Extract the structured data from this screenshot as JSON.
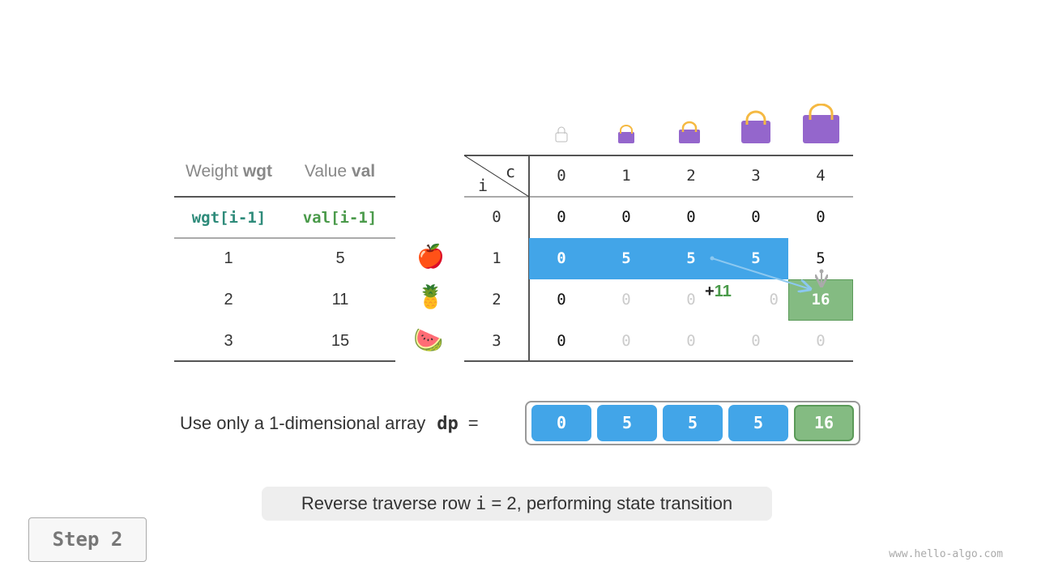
{
  "left_table": {
    "headers": [
      {
        "plain": "Weight ",
        "bold": "wgt"
      },
      {
        "plain": "Value ",
        "bold": "val"
      }
    ],
    "subheaders": [
      "wgt[i-1]",
      "val[i-1]"
    ],
    "rows": [
      [
        "1",
        "5"
      ],
      [
        "2",
        "11"
      ],
      [
        "3",
        "15"
      ]
    ],
    "items": [
      "apple-icon",
      "pineapple-icon",
      "watermelon-icon"
    ]
  },
  "dp_table": {
    "corner_c": "c",
    "corner_i": "i",
    "col_headers": [
      "0",
      "1",
      "2",
      "3",
      "4"
    ],
    "row_headers": [
      "0",
      "1",
      "2",
      "3"
    ],
    "rows": [
      [
        "0",
        "0",
        "0",
        "0",
        "0"
      ],
      [
        "0",
        "5",
        "5",
        "5",
        "5"
      ],
      [
        "0",
        "0",
        "0",
        "0",
        "16"
      ],
      [
        "0",
        "0",
        "0",
        "0",
        "0"
      ]
    ],
    "states": [
      [
        "normal",
        "normal",
        "normal",
        "normal",
        "normal"
      ],
      [
        "blue",
        "blue",
        "blue",
        "blue",
        "normal"
      ],
      [
        "normal",
        "faded",
        "faded",
        "faded",
        "green"
      ],
      [
        "normal",
        "faded",
        "faded",
        "faded",
        "faded"
      ]
    ],
    "annotation": {
      "plus": "+",
      "value": "11"
    },
    "bag_icons": [
      "empty-bag-icon",
      "bag-icon",
      "bag-icon",
      "bag-icon",
      "bag-icon"
    ]
  },
  "array": {
    "label": "Use only a 1-dimensional array",
    "name": "dp",
    "equals": "=",
    "values": [
      "0",
      "5",
      "5",
      "5",
      "16"
    ],
    "states": [
      "blue",
      "blue",
      "blue",
      "blue",
      "green"
    ]
  },
  "caption": {
    "before": "Reverse traverse row ",
    "code": "i",
    "after": " = 2, performing state transition"
  },
  "step_label": "Step 2",
  "watermark": "www.hello-algo.com",
  "colors": {
    "blue": "#42a5e8",
    "green": "#84bb82",
    "teal": "#2e8b7a",
    "val_green": "#4a9a4a",
    "bag": "#9466cc"
  }
}
